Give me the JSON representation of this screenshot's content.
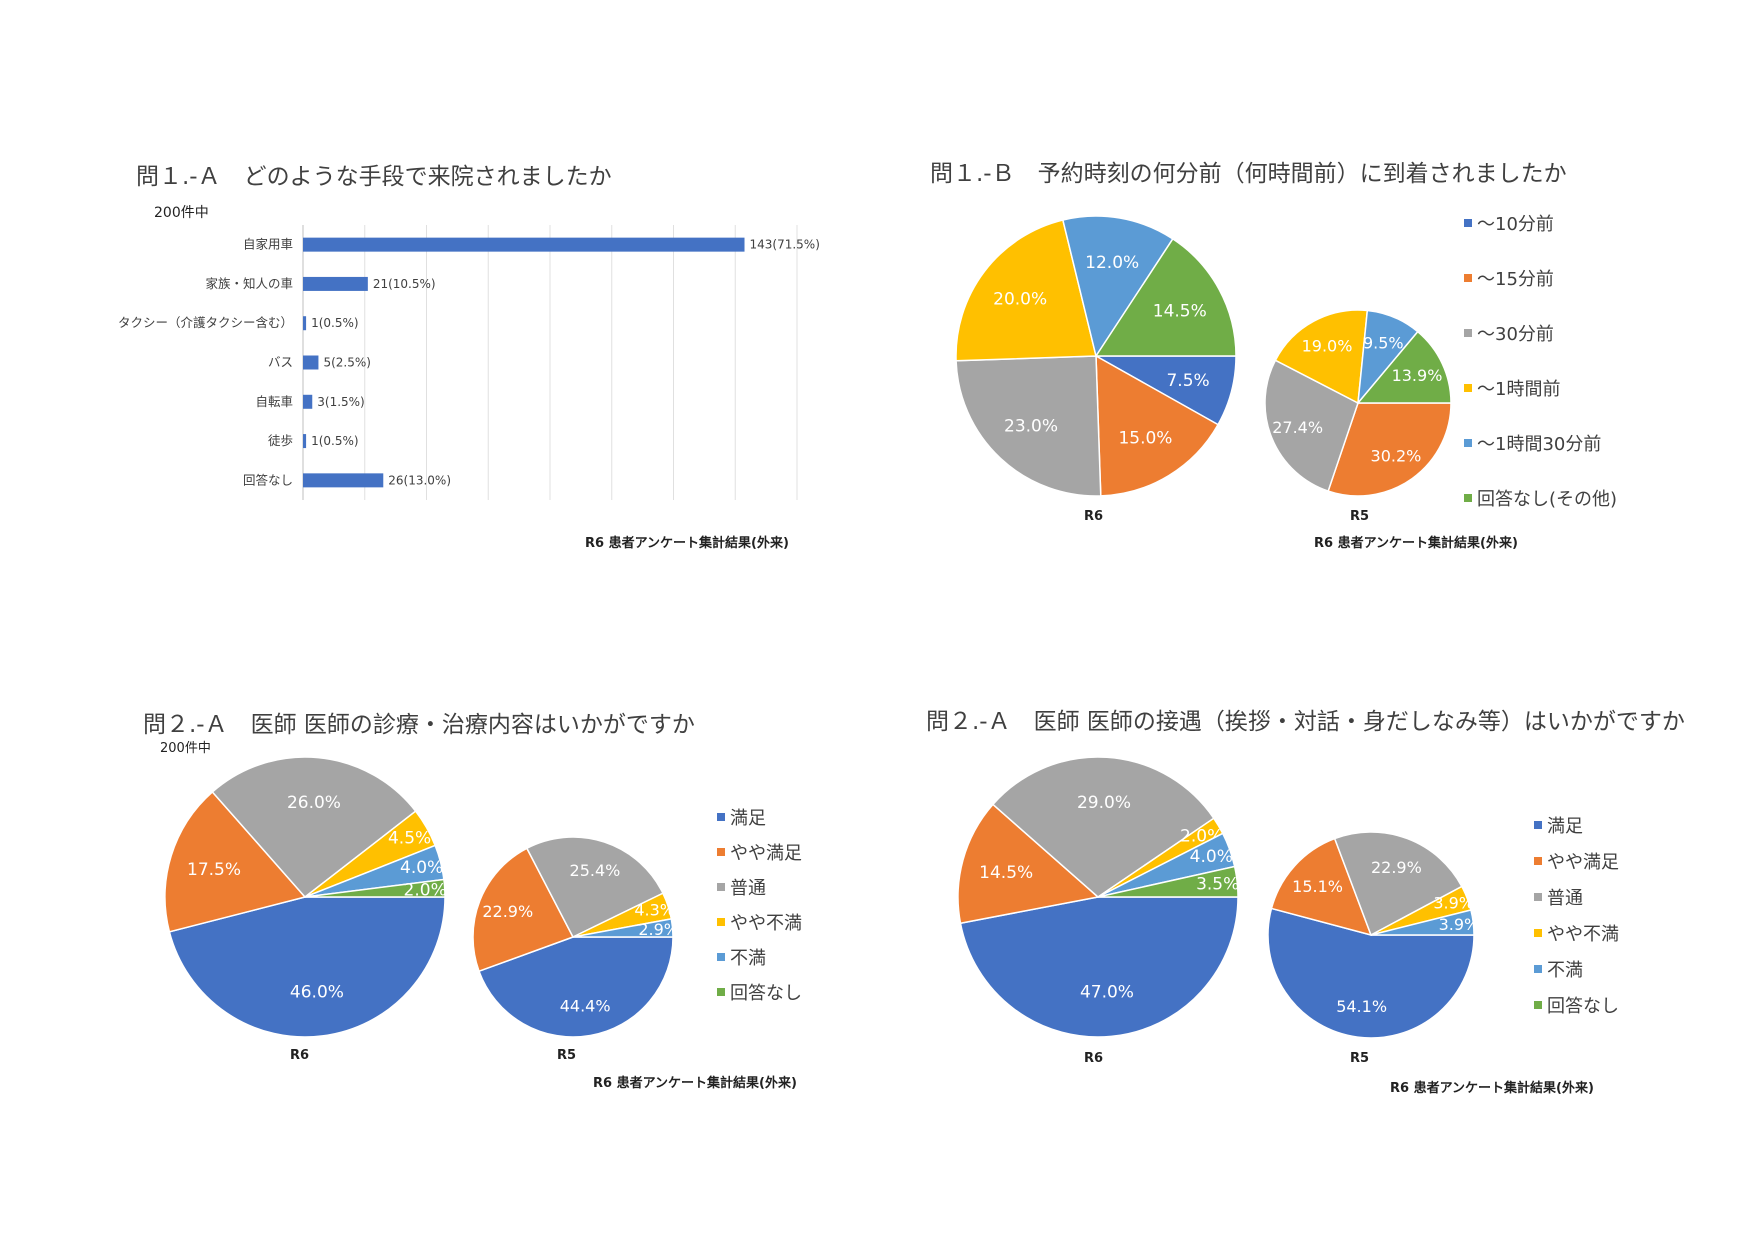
{
  "colors": {
    "blue": "#4472C4",
    "orange": "#ED7D31",
    "gray": "#A5A5A5",
    "yellow": "#FFC000",
    "lightblue": "#5B9BD5",
    "green": "#70AD47"
  },
  "chart_data": [
    {
      "type": "bar",
      "title": "問１.-Ａ　どのような手段で来院されましたか",
      "subtitle": "200件中",
      "source": "R6  患者アンケート集計結果(外来)",
      "categories": [
        "自家用車",
        "家族・知人の車",
        "タクシー（介護タクシー含む）",
        "バス",
        "自転車",
        "徒歩",
        "回答なし"
      ],
      "values": [
        143,
        21,
        1,
        5,
        3,
        1,
        26
      ],
      "data_labels": [
        "143(71.5%)",
        "21(10.5%)",
        "1(0.5%)",
        "5(2.5%)",
        "3(1.5%)",
        "1(0.5%)",
        "26(13.0%)"
      ],
      "xlim": [
        0,
        160
      ],
      "grid": true,
      "orientation": "horizontal"
    },
    {
      "type": "pie",
      "title": "問１.-Ｂ　予約時刻の何分前（何時間前）に到着されましたか",
      "source": "R6 患者アンケート集計結果(外来)",
      "legend": [
        "～10分前",
        "～15分前",
        "～30分前",
        "～1時間前",
        "～1時間30分前",
        "回答なし(その他)"
      ],
      "legend_position": "right",
      "pies": [
        {
          "label": "R6",
          "values": [
            7.5,
            15.0,
            23.0,
            20.0,
            12.0,
            14.5
          ],
          "labels": [
            "7.5%",
            "15.0%",
            "23.0%",
            "20.0%",
            "12.0%",
            "14.5%"
          ]
        },
        {
          "label": "R5",
          "values": [
            0,
            30.2,
            27.4,
            19.0,
            9.5,
            13.9
          ],
          "labels": [
            "",
            "30.2%",
            "27.4%",
            "19.0%",
            "9.5%",
            "13.9%"
          ]
        }
      ]
    },
    {
      "type": "pie",
      "title": "問２.-Ａ　医師  医師の診療・治療内容はいかがですか",
      "subtitle": "200件中",
      "source": "R6 患者アンケート集計結果(外来)",
      "legend": [
        "満足",
        "やや満足",
        "普通",
        "やや不満",
        "不満",
        "回答なし"
      ],
      "legend_position": "right",
      "pies": [
        {
          "label": "R6",
          "values": [
            46.0,
            17.5,
            26.0,
            4.5,
            4.0,
            2.0
          ],
          "labels": [
            "46.0%",
            "17.5%",
            "26.0%",
            "4.5%",
            "4.0%",
            "2.0%"
          ]
        },
        {
          "label": "R5",
          "values": [
            44.4,
            22.9,
            25.4,
            4.3,
            2.9,
            0
          ],
          "labels": [
            "44.4%",
            "22.9%",
            "25.4%",
            "4.3%",
            "2.9%",
            ""
          ]
        }
      ]
    },
    {
      "type": "pie",
      "title": "問２.-Ａ　医師  医師の接遇（挨拶・対話・身だしなみ等）はいかがですか",
      "source": "R6 患者アンケート集計結果(外来)",
      "legend": [
        "満足",
        "やや満足",
        "普通",
        "やや不満",
        "不満",
        "回答なし"
      ],
      "legend_position": "right",
      "pies": [
        {
          "label": "R6",
          "values": [
            47.0,
            14.5,
            29.0,
            2.0,
            4.0,
            3.5
          ],
          "labels": [
            "47.0%",
            "14.5%",
            "29.0%",
            "2.0%",
            "4.0%",
            "3.5%"
          ]
        },
        {
          "label": "R5",
          "values": [
            54.1,
            15.1,
            22.9,
            3.9,
            3.9,
            0
          ],
          "labels": [
            "54.1%",
            "15.1%",
            "22.9%",
            "3.9%",
            "3.9%",
            ""
          ]
        }
      ]
    }
  ]
}
